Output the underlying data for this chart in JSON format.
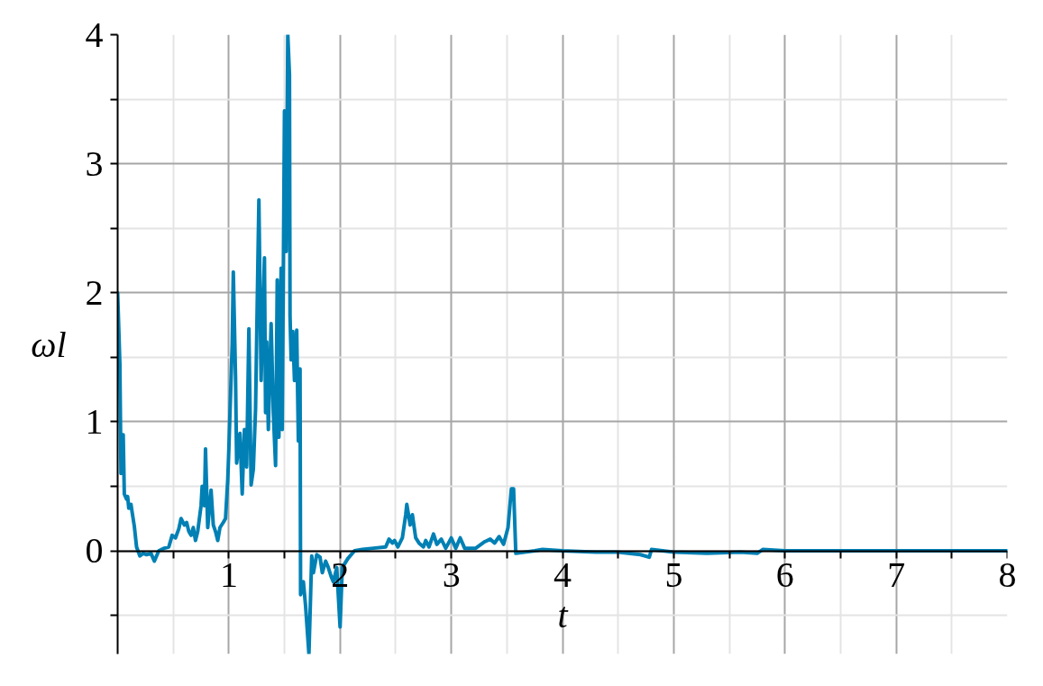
{
  "chart_data": {
    "type": "line",
    "xlabel": "t",
    "ylabel": "ωl",
    "xlim": [
      0,
      8
    ],
    "ylim": [
      -0.8,
      4
    ],
    "xticks": [
      {
        "value": 0.5,
        "label": null
      },
      1,
      {
        "value": 1.5,
        "label": null
      },
      2,
      {
        "value": 2.5,
        "label": null
      },
      3,
      {
        "value": 3.5,
        "label": null
      },
      4,
      {
        "value": 4.5,
        "label": null
      },
      5,
      {
        "value": 5.5,
        "label": null
      },
      6,
      {
        "value": 6.5,
        "label": null
      },
      7,
      {
        "value": 7.5,
        "label": null
      },
      8
    ],
    "yticks": [
      {
        "value": -0.5,
        "label": null
      },
      0,
      {
        "value": 0.5,
        "label": null
      },
      1,
      {
        "value": 1.5,
        "label": null
      },
      2,
      {
        "value": 2.5,
        "label": null
      },
      3,
      {
        "value": 3.5,
        "label": null
      },
      4
    ],
    "grid": true,
    "x": [
      0,
      0.02,
      0.03,
      0.04,
      0.05,
      0.06,
      0.08,
      0.09,
      0.1,
      0.12,
      0.13,
      0.15,
      0.17,
      0.2,
      0.23,
      0.26,
      0.3,
      0.33,
      0.37,
      0.42,
      0.46,
      0.49,
      0.52,
      0.55,
      0.57,
      0.6,
      0.62,
      0.64,
      0.66,
      0.68,
      0.7,
      0.72,
      0.75,
      0.76,
      0.78,
      0.79,
      0.81,
      0.84,
      0.86,
      0.88,
      0.9,
      0.92,
      0.95,
      0.97,
      0.99,
      1.0,
      1.01,
      1.03,
      1.04,
      1.06,
      1.07,
      1.1,
      1.12,
      1.14,
      1.16,
      1.18,
      1.2,
      1.22,
      1.24,
      1.27,
      1.29,
      1.32,
      1.33,
      1.34,
      1.355,
      1.38,
      1.4,
      1.42,
      1.435,
      1.45,
      1.47,
      1.48,
      1.5,
      1.515,
      1.53,
      1.545,
      1.55,
      1.56,
      1.575,
      1.59,
      1.61,
      1.625,
      1.64,
      1.645,
      1.67,
      1.69,
      1.72,
      1.745,
      1.76,
      1.79,
      1.82,
      1.84,
      1.87,
      1.89,
      1.92,
      1.94,
      1.97,
      2.0,
      2.02,
      2.07,
      2.13,
      2.2,
      2.3,
      2.41,
      2.44,
      2.47,
      2.49,
      2.52,
      2.56,
      2.59,
      2.6,
      2.63,
      2.65,
      2.68,
      2.71,
      2.75,
      2.77,
      2.8,
      2.84,
      2.87,
      2.91,
      2.95,
      3.0,
      3.04,
      3.08,
      3.12,
      3.22,
      3.3,
      3.35,
      3.39,
      3.43,
      3.47,
      3.51,
      3.54,
      3.56,
      3.58,
      3.75,
      3.82,
      4.0,
      4.3,
      4.5,
      4.7,
      4.78,
      4.8,
      5.0,
      5.3,
      5.6,
      5.75,
      5.8,
      6.0,
      7.0,
      8.0
    ],
    "series": [
      {
        "color": "#0080b4",
        "values": [
          2.0,
          1.45,
          0.6,
          0.62,
          0.9,
          0.44,
          0.4,
          0.42,
          0.33,
          0.36,
          0.3,
          0.19,
          0.03,
          -0.04,
          -0.02,
          -0.03,
          -0.02,
          -0.08,
          0.0,
          0.02,
          0.03,
          0.12,
          0.1,
          0.17,
          0.25,
          0.2,
          0.22,
          0.15,
          0.12,
          0.18,
          0.08,
          0.15,
          0.35,
          0.5,
          0.35,
          0.79,
          0.18,
          0.47,
          0.2,
          0.15,
          0.08,
          0.18,
          0.22,
          0.25,
          0.55,
          0.79,
          1.07,
          1.6,
          2.16,
          1.35,
          0.68,
          0.91,
          0.44,
          0.94,
          0.65,
          1.72,
          0.51,
          0.63,
          1.1,
          2.72,
          1.32,
          2.27,
          1.07,
          1.62,
          0.94,
          1.76,
          1.07,
          0.66,
          2.1,
          0.88,
          2.19,
          0.94,
          3.41,
          2.32,
          4.0,
          3.69,
          1.82,
          1.48,
          1.7,
          1.32,
          1.71,
          0.85,
          1.41,
          -0.34,
          -0.24,
          -0.43,
          -0.8,
          -0.04,
          -0.17,
          -0.03,
          -0.05,
          -0.17,
          -0.08,
          -0.12,
          -0.2,
          -0.24,
          -0.13,
          -0.59,
          -0.13,
          -0.06,
          0.0,
          0.01,
          0.02,
          0.03,
          0.09,
          0.06,
          0.08,
          0.03,
          0.1,
          0.28,
          0.36,
          0.2,
          0.28,
          0.1,
          0.06,
          0.03,
          0.08,
          0.03,
          0.13,
          0.05,
          0.09,
          0.02,
          0.1,
          0.02,
          0.1,
          0.02,
          0.02,
          0.07,
          0.09,
          0.06,
          0.11,
          0.05,
          0.18,
          0.48,
          0.48,
          -0.02,
          0.0,
          0.01,
          0.0,
          -0.01,
          -0.01,
          -0.03,
          -0.05,
          0.01,
          -0.01,
          -0.02,
          -0.01,
          -0.02,
          0.01,
          0.0,
          0.0,
          0.0
        ]
      }
    ]
  }
}
